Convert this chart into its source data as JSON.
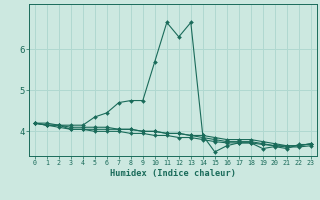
{
  "xlabel": "Humidex (Indice chaleur)",
  "bg_color": "#cce8e0",
  "line_color": "#1a6b5a",
  "grid_color": "#b0d8d0",
  "xlim": [
    -0.5,
    23.5
  ],
  "ylim": [
    3.4,
    7.1
  ],
  "yticks": [
    4,
    5,
    6
  ],
  "xtick_labels": [
    "0",
    "1",
    "2",
    "3",
    "4",
    "5",
    "6",
    "7",
    "8",
    "9",
    "10",
    "11",
    "12",
    "13",
    "14",
    "15",
    "16",
    "17",
    "18",
    "19",
    "20",
    "21",
    "22",
    "23"
  ],
  "series": [
    [
      4.2,
      4.2,
      4.15,
      4.15,
      4.15,
      4.35,
      4.45,
      4.7,
      4.75,
      4.75,
      5.7,
      6.65,
      6.3,
      6.65,
      3.9,
      3.5,
      3.65,
      3.72,
      3.72,
      3.58,
      3.63,
      3.58,
      3.68,
      3.68
    ],
    [
      4.2,
      4.15,
      4.15,
      4.05,
      4.05,
      4.05,
      4.05,
      4.05,
      4.05,
      4.0,
      4.0,
      3.95,
      3.95,
      3.9,
      3.85,
      3.8,
      3.75,
      3.75,
      3.75,
      3.7,
      3.65,
      3.65,
      3.65,
      3.7
    ],
    [
      4.2,
      4.15,
      4.15,
      4.1,
      4.1,
      4.1,
      4.1,
      4.05,
      4.05,
      4.0,
      4.0,
      3.95,
      3.95,
      3.9,
      3.9,
      3.85,
      3.8,
      3.8,
      3.8,
      3.75,
      3.7,
      3.65,
      3.65,
      3.7
    ],
    [
      4.2,
      4.15,
      4.1,
      4.05,
      4.05,
      4.0,
      4.0,
      4.0,
      3.95,
      3.95,
      3.9,
      3.9,
      3.85,
      3.85,
      3.8,
      3.75,
      3.72,
      3.72,
      3.72,
      3.68,
      3.65,
      3.62,
      3.62,
      3.65
    ]
  ]
}
